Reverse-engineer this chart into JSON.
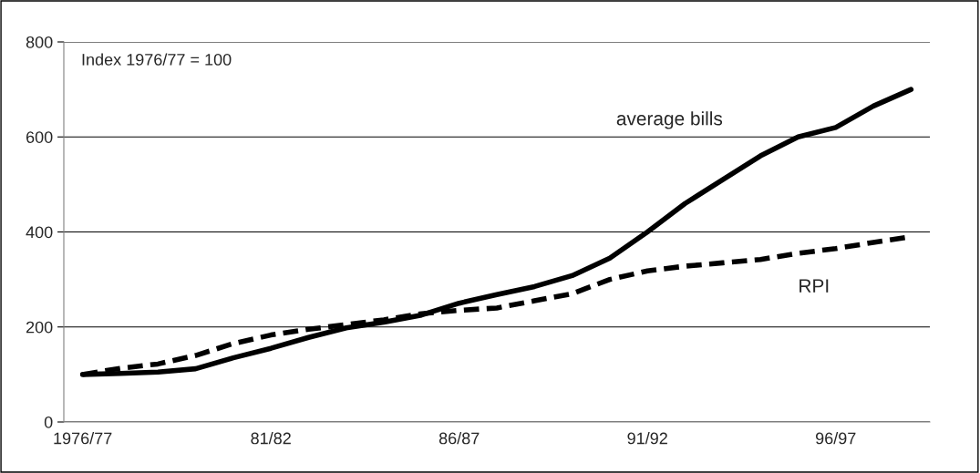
{
  "chart_data": {
    "type": "line",
    "categories": [
      "1976/77",
      null,
      null,
      null,
      null,
      "81/82",
      null,
      null,
      null,
      null,
      "86/87",
      null,
      null,
      null,
      null,
      "91/92",
      null,
      null,
      null,
      null,
      "96/97",
      null,
      null
    ],
    "series": [
      {
        "name": "average bills",
        "color": "#000000",
        "line_style": "solid",
        "values": [
          100,
          102,
          105,
          112,
          135,
          155,
          178,
          198,
          210,
          225,
          250,
          268,
          285,
          308,
          345,
          400,
          460,
          510,
          560,
          600,
          620,
          665,
          700
        ]
      },
      {
        "name": "RPI",
        "color": "#000000",
        "line_style": "dashed",
        "values": [
          100,
          113,
          122,
          140,
          165,
          183,
          195,
          205,
          215,
          228,
          235,
          240,
          255,
          270,
          300,
          318,
          328,
          335,
          342,
          355,
          365,
          378,
          390
        ]
      }
    ],
    "ylim": [
      0,
      800
    ],
    "yticks": [
      0,
      200,
      400,
      600,
      800
    ],
    "grid": "y",
    "legend": false,
    "annotations": [
      "Index 1976/77 = 100"
    ]
  }
}
